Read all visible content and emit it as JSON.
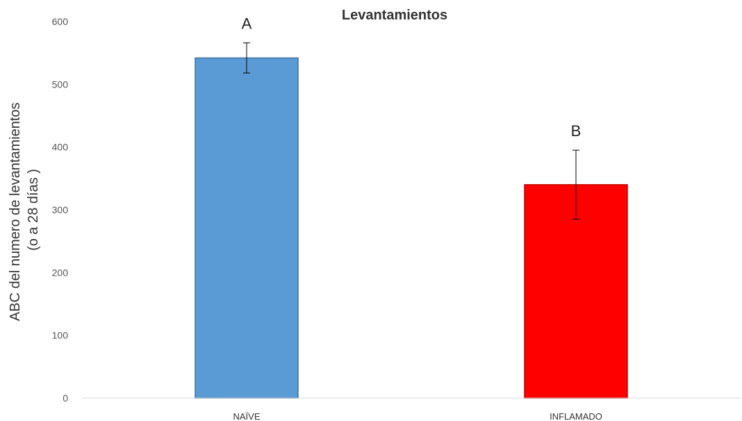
{
  "chart_data": {
    "type": "bar",
    "title": "Levantamientos",
    "ylabel_lines": [
      "ABC del numero de levantamientos",
      "(o a 28 días )"
    ],
    "xlabel": "",
    "categories": [
      "NAÏVE",
      "INFLAMADO"
    ],
    "values": [
      542,
      340
    ],
    "errors": [
      24,
      55
    ],
    "significance_labels": [
      "A",
      "B"
    ],
    "bar_colors": [
      "#5b9bd5",
      "#ff0000"
    ],
    "bar_stroke_colors": [
      "#41719c",
      "#c00000"
    ],
    "ylim": [
      0,
      600
    ],
    "yticks": [
      0,
      100,
      200,
      300,
      400,
      500,
      600
    ],
    "grid": false,
    "legend": "none"
  }
}
